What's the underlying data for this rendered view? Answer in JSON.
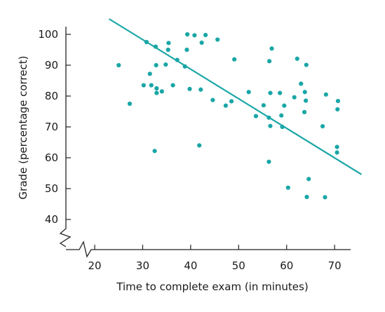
{
  "chart_data": {
    "type": "scatter",
    "title": "",
    "xlabel": "Time to complete exam (in minutes)",
    "ylabel": "Grade (percentage correct)",
    "xlim": [
      10,
      76
    ],
    "ylim": [
      40,
      104
    ],
    "x_axis_break": true,
    "y_axis_break": true,
    "x_ticks": [
      20,
      30,
      40,
      50,
      60,
      70
    ],
    "y_ticks": [
      40,
      50,
      60,
      70,
      80,
      90,
      100
    ],
    "grid": false,
    "legend": "none",
    "colors": {
      "points": "#1aa6a6",
      "trend_line": "#1aa6a6",
      "axis": "#222222"
    },
    "points": [
      {
        "x": 25,
        "y": 90
      },
      {
        "x": 27.3,
        "y": 77.5
      },
      {
        "x": 30.2,
        "y": 83.5
      },
      {
        "x": 30.8,
        "y": 97.5
      },
      {
        "x": 31.5,
        "y": 87.2
      },
      {
        "x": 31.8,
        "y": 83.5
      },
      {
        "x": 32.5,
        "y": 62.2
      },
      {
        "x": 32.7,
        "y": 96
      },
      {
        "x": 32.8,
        "y": 90
      },
      {
        "x": 32.9,
        "y": 82.5
      },
      {
        "x": 32.9,
        "y": 81
      },
      {
        "x": 34,
        "y": 81.5
      },
      {
        "x": 34.8,
        "y": 90.2
      },
      {
        "x": 35.3,
        "y": 95
      },
      {
        "x": 35.4,
        "y": 97.2
      },
      {
        "x": 36.3,
        "y": 83.5
      },
      {
        "x": 37.2,
        "y": 91.7
      },
      {
        "x": 38.8,
        "y": 89.6
      },
      {
        "x": 39.2,
        "y": 95
      },
      {
        "x": 39.3,
        "y": 100
      },
      {
        "x": 39.8,
        "y": 82.3
      },
      {
        "x": 40.8,
        "y": 99.7
      },
      {
        "x": 41.8,
        "y": 64
      },
      {
        "x": 42.1,
        "y": 82.1
      },
      {
        "x": 42.3,
        "y": 97.3
      },
      {
        "x": 43.1,
        "y": 99.8
      },
      {
        "x": 44.6,
        "y": 78.7
      },
      {
        "x": 45.6,
        "y": 98.3
      },
      {
        "x": 47.3,
        "y": 76.9
      },
      {
        "x": 48.5,
        "y": 78.3
      },
      {
        "x": 49.1,
        "y": 91.9
      },
      {
        "x": 52.1,
        "y": 81.3
      },
      {
        "x": 53.6,
        "y": 73.5
      },
      {
        "x": 55.2,
        "y": 77
      },
      {
        "x": 56.3,
        "y": 58.7
      },
      {
        "x": 56.3,
        "y": 73
      },
      {
        "x": 56.4,
        "y": 91.3
      },
      {
        "x": 56.6,
        "y": 70.3
      },
      {
        "x": 56.6,
        "y": 81
      },
      {
        "x": 56.9,
        "y": 95.4
      },
      {
        "x": 58.6,
        "y": 81
      },
      {
        "x": 58.9,
        "y": 73.7
      },
      {
        "x": 59.1,
        "y": 70
      },
      {
        "x": 59.5,
        "y": 76.9
      },
      {
        "x": 60.3,
        "y": 50.3
      },
      {
        "x": 61.6,
        "y": 79.6
      },
      {
        "x": 62.2,
        "y": 92.1
      },
      {
        "x": 63,
        "y": 84
      },
      {
        "x": 63.7,
        "y": 74.8
      },
      {
        "x": 63.8,
        "y": 81.3
      },
      {
        "x": 64,
        "y": 78.5
      },
      {
        "x": 64.1,
        "y": 90.1
      },
      {
        "x": 64.2,
        "y": 47.3
      },
      {
        "x": 64.6,
        "y": 53.1
      },
      {
        "x": 67.5,
        "y": 70.2
      },
      {
        "x": 68,
        "y": 47.2
      },
      {
        "x": 68.2,
        "y": 80.5
      },
      {
        "x": 70.5,
        "y": 63.5
      },
      {
        "x": 70.5,
        "y": 61.7
      },
      {
        "x": 70.6,
        "y": 75.7
      },
      {
        "x": 70.7,
        "y": 78.4
      }
    ],
    "trend_line": {
      "x1": 23,
      "y1": 105,
      "x2": 75.6,
      "y2": 54.6
    }
  }
}
